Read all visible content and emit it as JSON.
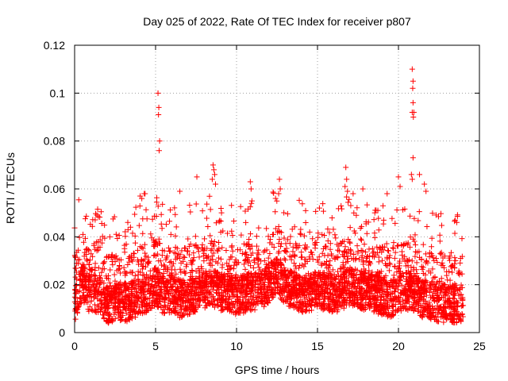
{
  "chart_data": {
    "type": "scatter",
    "title": "Day 025 of 2022, Rate Of TEC Index for receiver p807",
    "xlabel": "GPS time / hours",
    "ylabel": "ROTI / TECUs",
    "xlim": [
      0,
      25
    ],
    "ylim": [
      0,
      0.12
    ],
    "xticks": [
      "0",
      "5",
      "10",
      "15",
      "20",
      "25"
    ],
    "yticks": [
      "0",
      "0.02",
      "0.04",
      "0.06",
      "0.08",
      "0.1",
      "0.12"
    ],
    "grid": true,
    "marker": "plus",
    "color": "#ff0000",
    "baseline": [
      [
        0,
        0.013
      ],
      [
        0.5,
        0.022
      ],
      [
        1,
        0.016
      ],
      [
        1.5,
        0.017
      ],
      [
        2,
        0.012
      ],
      [
        2.5,
        0.014
      ],
      [
        3,
        0.013
      ],
      [
        3.5,
        0.014
      ],
      [
        4,
        0.016
      ],
      [
        4.5,
        0.017
      ],
      [
        5,
        0.02
      ],
      [
        5.5,
        0.016
      ],
      [
        6,
        0.017
      ],
      [
        6.5,
        0.015
      ],
      [
        7,
        0.016
      ],
      [
        7.5,
        0.017
      ],
      [
        8,
        0.019
      ],
      [
        8.5,
        0.02
      ],
      [
        9,
        0.018
      ],
      [
        9.5,
        0.017
      ],
      [
        10,
        0.016
      ],
      [
        10.5,
        0.017
      ],
      [
        11,
        0.018
      ],
      [
        11.5,
        0.018
      ],
      [
        12,
        0.021
      ],
      [
        12.5,
        0.025
      ],
      [
        13,
        0.02
      ],
      [
        13.5,
        0.018
      ],
      [
        14,
        0.017
      ],
      [
        14.5,
        0.017
      ],
      [
        15,
        0.019
      ],
      [
        15.5,
        0.018
      ],
      [
        16,
        0.017
      ],
      [
        16.5,
        0.018
      ],
      [
        17,
        0.02
      ],
      [
        17.5,
        0.019
      ],
      [
        18,
        0.018
      ],
      [
        18.5,
        0.017
      ],
      [
        19,
        0.016
      ],
      [
        19.5,
        0.015
      ],
      [
        20,
        0.017
      ],
      [
        20.5,
        0.018
      ],
      [
        21,
        0.017
      ],
      [
        21.5,
        0.015
      ],
      [
        22,
        0.014
      ],
      [
        22.5,
        0.013
      ],
      [
        23,
        0.013
      ],
      [
        23.5,
        0.012
      ],
      [
        24,
        0.012
      ]
    ],
    "outliers": [
      [
        5.15,
        0.1
      ],
      [
        5.2,
        0.094
      ],
      [
        5.18,
        0.091
      ],
      [
        5.25,
        0.08
      ],
      [
        5.22,
        0.076
      ],
      [
        20.85,
        0.11
      ],
      [
        20.9,
        0.105
      ],
      [
        20.88,
        0.102
      ],
      [
        20.9,
        0.096
      ],
      [
        20.85,
        0.092
      ],
      [
        20.92,
        0.09
      ],
      [
        20.95,
        0.092
      ],
      [
        20.9,
        0.073
      ],
      [
        20.8,
        0.066
      ],
      [
        20.85,
        0.064
      ],
      [
        21.3,
        0.066
      ],
      [
        21.6,
        0.062
      ],
      [
        21.7,
        0.059
      ],
      [
        8.55,
        0.07
      ],
      [
        8.6,
        0.068
      ],
      [
        8.65,
        0.066
      ],
      [
        8.5,
        0.064
      ],
      [
        8.7,
        0.062
      ],
      [
        16.75,
        0.069
      ],
      [
        16.8,
        0.064
      ],
      [
        16.7,
        0.061
      ],
      [
        16.85,
        0.059
      ],
      [
        20.0,
        0.065
      ],
      [
        20.1,
        0.061
      ],
      [
        10.85,
        0.063
      ],
      [
        10.9,
        0.06
      ],
      [
        10.95,
        0.055
      ],
      [
        12.65,
        0.064
      ],
      [
        12.7,
        0.06
      ],
      [
        12.6,
        0.058
      ],
      [
        4.3,
        0.058
      ],
      [
        4.35,
        0.058
      ],
      [
        4.05,
        0.057
      ],
      [
        4.15,
        0.056
      ],
      [
        7.55,
        0.065
      ],
      [
        6.5,
        0.059
      ],
      [
        17.8,
        0.06
      ],
      [
        17.2,
        0.058
      ],
      [
        19.3,
        0.058
      ],
      [
        23.5,
        0.047
      ],
      [
        23.6,
        0.046
      ]
    ]
  }
}
